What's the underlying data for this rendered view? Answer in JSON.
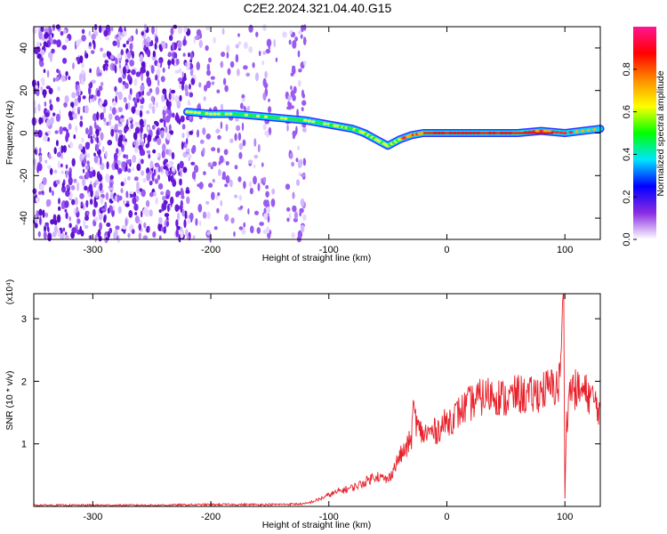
{
  "title": "C2E2.2024.321.04.40.G15",
  "chart_data": [
    {
      "type": "heatmap",
      "xlabel": "Height of straight line (km)",
      "ylabel": "Frequency (Hz)",
      "xlim": [
        -350,
        130
      ],
      "ylim": [
        -50,
        50
      ],
      "xticks": [
        -300,
        -200,
        -100,
        0,
        100
      ],
      "xtick_labels": [
        "-300",
        "-200",
        "-100",
        "0",
        "100"
      ],
      "yticks": [
        -40,
        -20,
        0,
        20,
        40
      ],
      "ytick_labels": [
        "-40",
        "-20",
        "0",
        "20",
        "40"
      ],
      "colorbar": {
        "label": "Normalized spectral amplitude",
        "range": [
          0,
          1
        ],
        "ticks": [
          0.0,
          0.2,
          0.4,
          0.6,
          0.8
        ],
        "tick_labels": [
          "0.0",
          "0.2",
          "0.4",
          "0.6",
          "0.8"
        ],
        "colors": [
          "#ffffff",
          "#8a2be2",
          "#0000ff",
          "#00e5ff",
          "#00ff00",
          "#ffff00",
          "#ff8c00",
          "#ff0000",
          "#ff1493"
        ]
      },
      "noise_region_x": [
        -350,
        -120
      ],
      "signal_trace": {
        "x": [
          -220,
          -200,
          -180,
          -160,
          -140,
          -120,
          -100,
          -90,
          -80,
          -70,
          -60,
          -50,
          -40,
          -30,
          -20,
          0,
          20,
          40,
          60,
          80,
          100,
          130
        ],
        "y": [
          10,
          9,
          9,
          8,
          7,
          6,
          4,
          3,
          2,
          0,
          -3,
          -6,
          -3,
          -1,
          0,
          0,
          0,
          0,
          0,
          1,
          0,
          2
        ]
      }
    },
    {
      "type": "line",
      "xlabel": "Height of straight line (km)",
      "ylabel": "SNR (10 * v/v)",
      "y_multiplier": "(x10⁴)",
      "xlim": [
        -350,
        130
      ],
      "ylim": [
        0,
        3.4
      ],
      "xticks": [
        -300,
        -200,
        -100,
        0,
        100
      ],
      "xtick_labels": [
        "-300",
        "-200",
        "-100",
        "0",
        "100"
      ],
      "yticks": [
        1,
        2,
        3
      ],
      "ytick_labels": [
        "1",
        "2",
        "3"
      ],
      "color": "#e8202a",
      "series": [
        {
          "x": [
            -350,
            -300,
            -250,
            -200,
            -150,
            -120,
            -110,
            -100,
            -90,
            -80,
            -70,
            -60,
            -55,
            -50,
            -45,
            -40,
            -35,
            -30,
            -28,
            -25,
            -20,
            -10,
            0,
            10,
            20,
            30,
            40,
            50,
            60,
            70,
            80,
            90,
            95,
            99,
            100,
            101,
            103,
            105,
            110,
            120,
            130
          ],
          "y": [
            0.02,
            0.02,
            0.02,
            0.03,
            0.03,
            0.04,
            0.1,
            0.18,
            0.25,
            0.3,
            0.38,
            0.5,
            0.45,
            0.42,
            0.6,
            0.8,
            0.9,
            1.1,
            1.6,
            1.25,
            1.15,
            1.2,
            1.35,
            1.5,
            1.65,
            1.75,
            1.8,
            1.7,
            1.8,
            1.75,
            1.85,
            1.9,
            1.95,
            3.3,
            0.15,
            1.2,
            1.7,
            1.9,
            1.85,
            1.8,
            1.55
          ]
        }
      ]
    }
  ]
}
